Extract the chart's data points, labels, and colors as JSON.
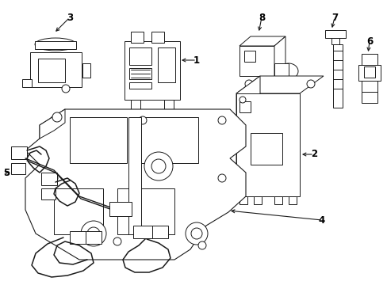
{
  "bg_color": "#ffffff",
  "line_color": "#1a1a1a",
  "figsize": [
    4.89,
    3.6
  ],
  "dpi": 100,
  "parts": {
    "part1_label": "1",
    "part2_label": "2",
    "part3_label": "3",
    "part4_label": "4",
    "part5_label": "5",
    "part6_label": "6",
    "part7_label": "7",
    "part8_label": "8"
  }
}
